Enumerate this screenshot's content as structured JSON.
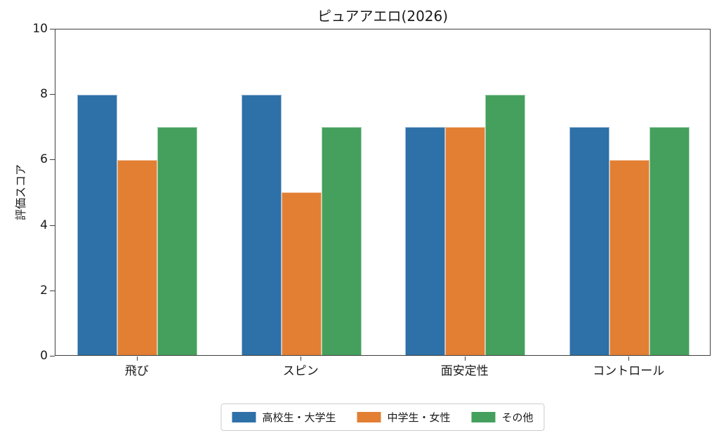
{
  "chart_data": {
    "type": "bar",
    "title": "ピュアアエロ(2026)",
    "xlabel": "",
    "ylabel": "評価スコア",
    "categories": [
      "飛び",
      "スピン",
      "面安定性",
      "コントロール"
    ],
    "series": [
      {
        "name": "高校生・大学生",
        "color": "#2e70a8",
        "values": [
          8,
          8,
          7,
          7
        ]
      },
      {
        "name": "中学生・女性",
        "color": "#e27f33",
        "values": [
          6,
          5,
          7,
          6
        ]
      },
      {
        "name": "その他",
        "color": "#44a05c",
        "values": [
          7,
          7,
          8,
          7
        ]
      }
    ],
    "ylim": [
      0,
      10
    ],
    "yticks": [
      0,
      2,
      4,
      6,
      8,
      10
    ],
    "grid": false,
    "legend_position": "bottom-center",
    "spine_color": "#3f3f3f",
    "background_color": "#ffffff"
  }
}
